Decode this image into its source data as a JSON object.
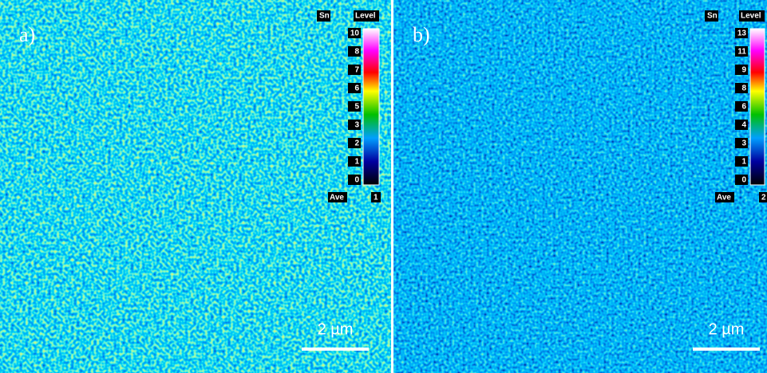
{
  "panels": [
    {
      "label": "a)",
      "element": "Sn",
      "level_title": "Level",
      "levels": [
        10,
        8,
        7,
        6,
        5,
        3,
        2,
        1,
        0
      ],
      "ave_label": "Ave",
      "ave": 1,
      "scale_bar": "2 µm"
    },
    {
      "label": "b)",
      "element": "Sn",
      "level_title": "Level",
      "levels": [
        13,
        11,
        9,
        8,
        6,
        4,
        3,
        1,
        0
      ],
      "ave_label": "Ave",
      "ave": 2,
      "scale_bar": "2 µm"
    }
  ]
}
